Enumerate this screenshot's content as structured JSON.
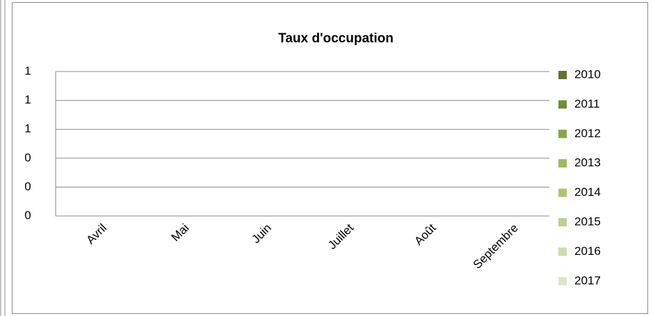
{
  "chart_data": {
    "type": "bar",
    "title": "Taux d'occupation",
    "categories": [
      "Avril",
      "Mai",
      "Juin",
      "Juillet",
      "Août",
      "Septembre"
    ],
    "series": [
      {
        "name": "2010",
        "color": "#5f7530",
        "values": [
          null,
          null,
          null,
          null,
          null,
          null
        ]
      },
      {
        "name": "2011",
        "color": "#6f8f35",
        "values": [
          null,
          null,
          null,
          null,
          null,
          null
        ]
      },
      {
        "name": "2012",
        "color": "#86a844",
        "values": [
          null,
          null,
          null,
          null,
          null,
          null
        ]
      },
      {
        "name": "2013",
        "color": "#9bbb59",
        "values": [
          null,
          null,
          null,
          null,
          null,
          null
        ]
      },
      {
        "name": "2014",
        "color": "#aac86f",
        "values": [
          null,
          null,
          null,
          null,
          null,
          null
        ]
      },
      {
        "name": "2015",
        "color": "#bcd08f",
        "values": [
          null,
          null,
          null,
          null,
          null,
          null
        ]
      },
      {
        "name": "2016",
        "color": "#ccdcaa",
        "values": [
          null,
          null,
          null,
          null,
          null,
          null
        ]
      },
      {
        "name": "2017",
        "color": "#dce6c7",
        "values": [
          null,
          null,
          null,
          null,
          null,
          null
        ]
      }
    ],
    "ylim": [
      0,
      1
    ],
    "yticks": [
      0,
      {
        "value": 0.2,
        "label": "0"
      },
      {
        "value": 0.4,
        "label": "0"
      },
      {
        "value": 0.6,
        "label": "1"
      },
      {
        "value": 0.8,
        "label": "1"
      },
      1
    ],
    "grid": true,
    "legend": "right"
  }
}
